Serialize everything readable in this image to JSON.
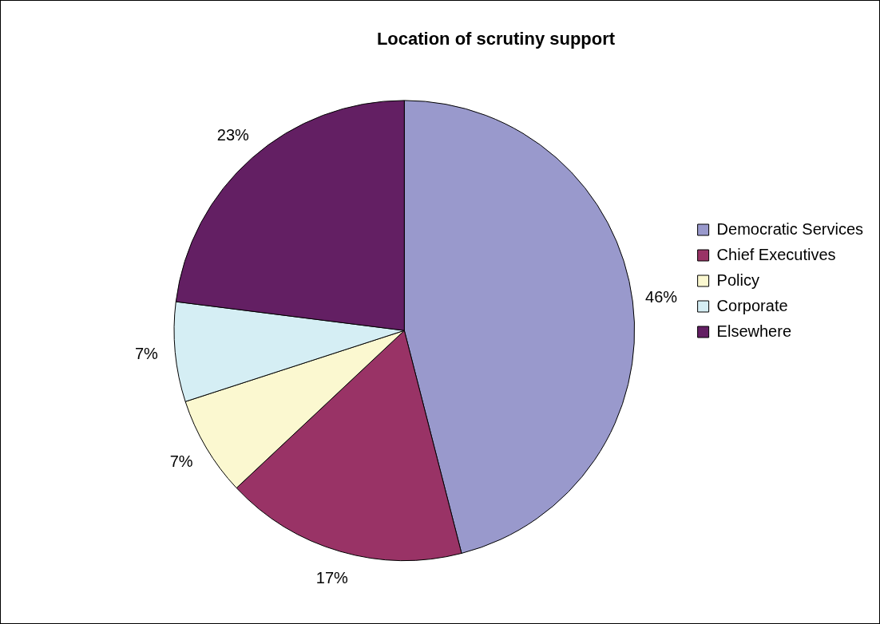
{
  "chart_data": {
    "type": "pie",
    "title": "Location of scrutiny support",
    "categories": [
      "Democratic Services",
      "Chief Executives",
      "Policy",
      "Corporate",
      "Elsewhere"
    ],
    "values": [
      46,
      17,
      7,
      7,
      23
    ],
    "value_labels": [
      "46%",
      "17%",
      "7%",
      "7%",
      "23%"
    ],
    "colors": [
      "#9999cc",
      "#993366",
      "#fbf8d0",
      "#d5eef4",
      "#631f63"
    ],
    "legend": "right"
  }
}
